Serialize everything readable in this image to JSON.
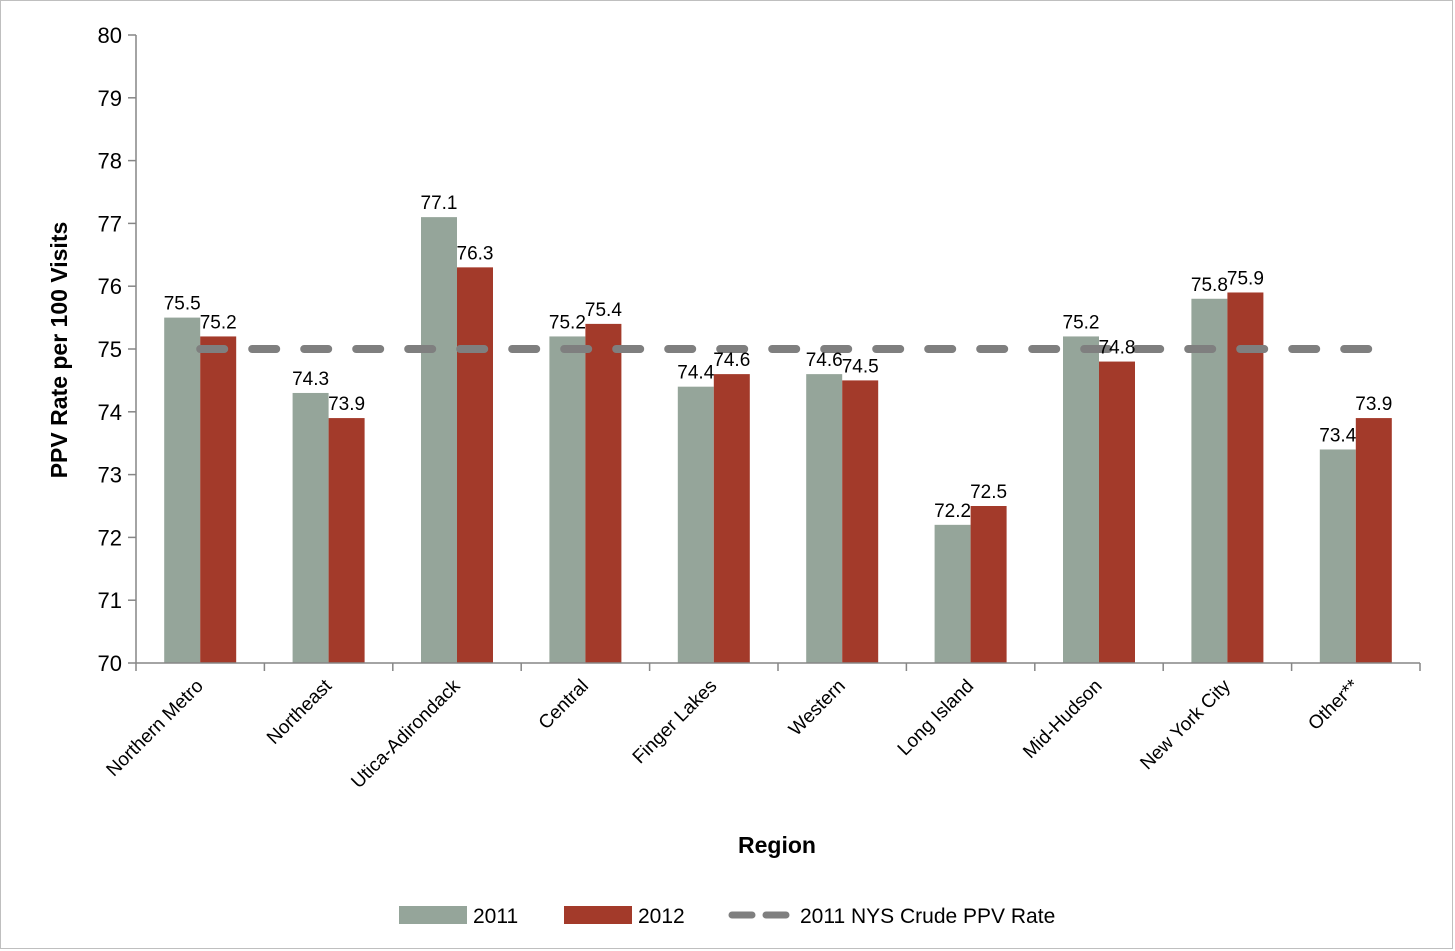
{
  "chart_data": {
    "type": "bar",
    "categories": [
      "Northern Metro",
      "Northeast",
      "Utica-Adirondack",
      "Central",
      "Finger Lakes",
      "Western",
      "Long Island",
      "Mid-Hudson",
      "New York City",
      "Other**"
    ],
    "series": [
      {
        "name": "2011",
        "color": "#95a59a",
        "values": [
          75.5,
          74.3,
          77.1,
          75.2,
          74.4,
          74.6,
          72.2,
          75.2,
          75.8,
          73.4
        ]
      },
      {
        "name": "2012",
        "color": "#a33a2a",
        "values": [
          75.2,
          73.9,
          76.3,
          75.4,
          74.6,
          74.5,
          72.5,
          74.8,
          75.9,
          73.9
        ]
      }
    ],
    "reference_line": {
      "name": "2011 NYS Crude PPV Rate",
      "value": 75.0,
      "color": "#7f7f7f",
      "style": "dashed"
    },
    "xlabel": "Region",
    "ylabel": "PPV Rate per 100 Visits",
    "ylim": [
      70,
      80
    ],
    "yticks": [
      "70",
      "71",
      "72",
      "73",
      "74",
      "75",
      "76",
      "77",
      "78",
      "79",
      "80"
    ],
    "data_labels": true,
    "grid": false,
    "legend_position": "bottom"
  }
}
